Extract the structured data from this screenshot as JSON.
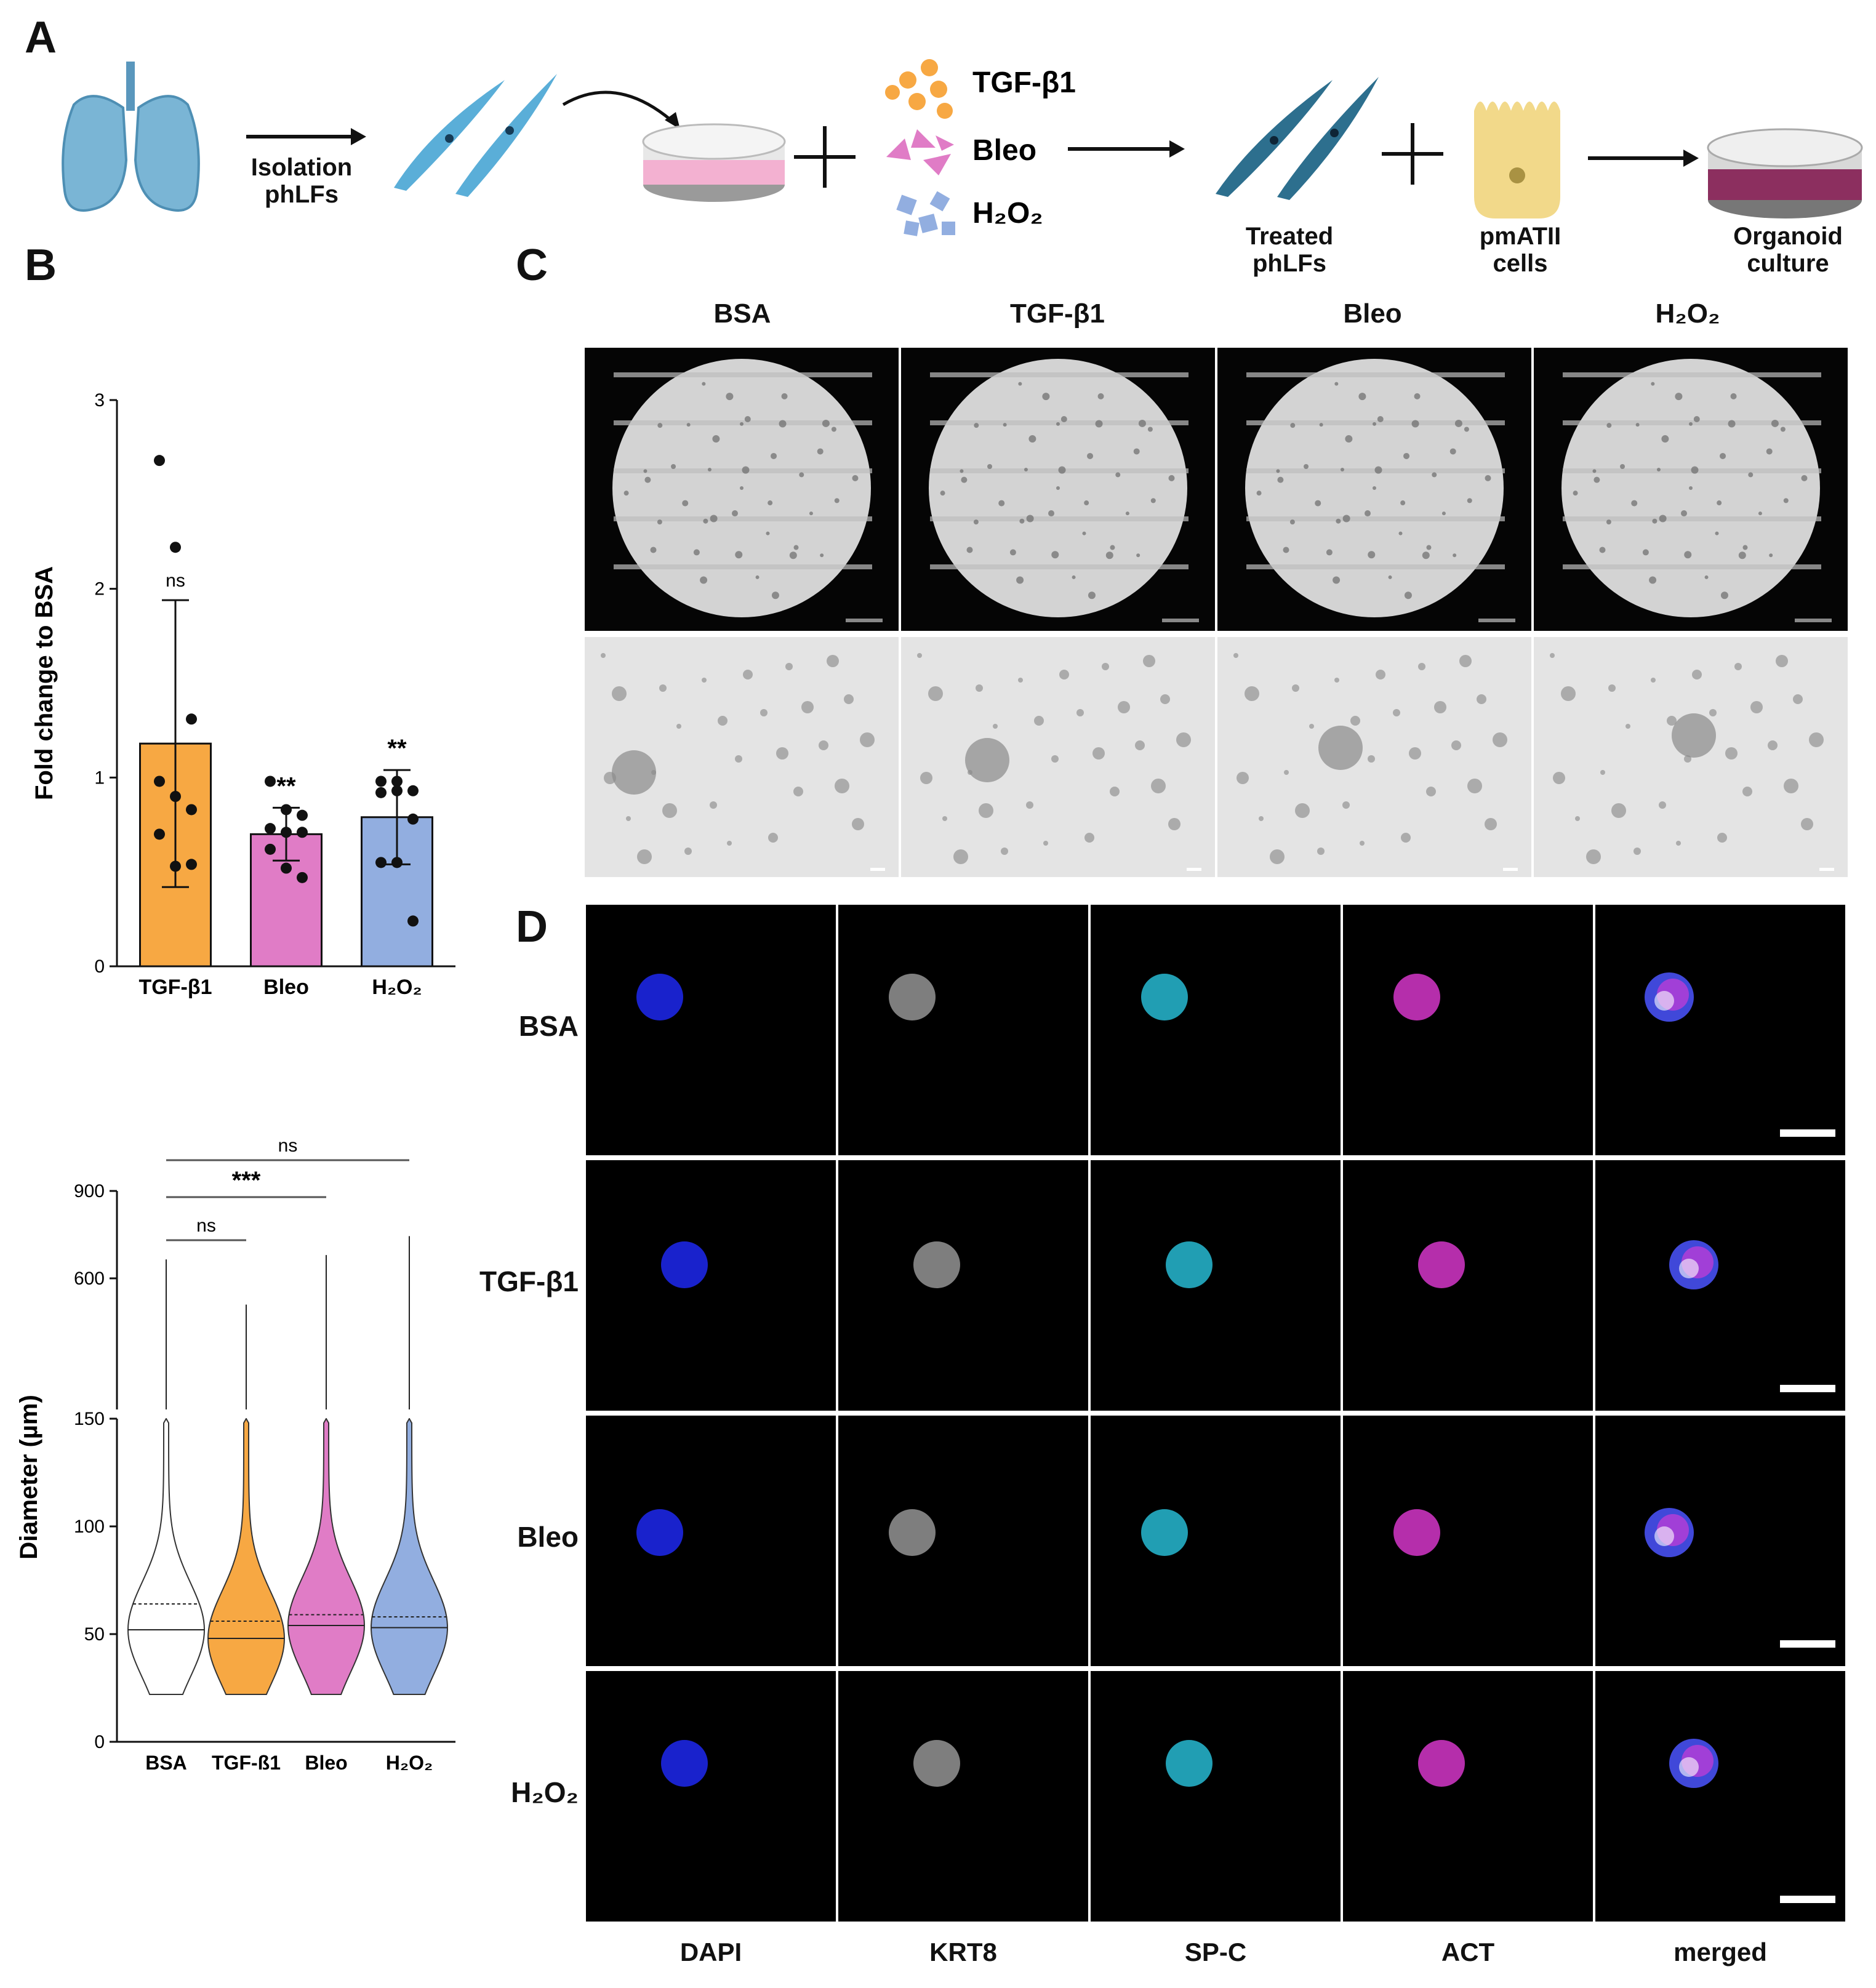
{
  "panels": {
    "a": "A",
    "b": "B",
    "c": "C",
    "d": "D"
  },
  "panelA": {
    "isolation_label": "Isolation\nphLFs",
    "treatments": [
      "TGF-β1",
      "Bleo",
      "H₂O₂"
    ],
    "treated_label": "Treated\nphLFs",
    "pmatii_label": "pmATII\ncells",
    "organoid_label": "Organoid\nculture"
  },
  "colors": {
    "tgf": "#f7a843",
    "bleo": "#e07cc6",
    "h2o2": "#92aee0",
    "bsa": "#ffffff",
    "lung": "#7ab5d5",
    "fibroblast": "#5aaed8",
    "treated_fibroblast": "#2d6f8e",
    "dish_pink": "#f3b1d1",
    "dish_organoid": "#8c2f5f",
    "cell_yellow": "#f2d98a"
  },
  "chart_data": [
    {
      "type": "bar",
      "categories": [
        "TGF-β1",
        "Bleo",
        "H₂O₂"
      ],
      "values": [
        1.18,
        0.7,
        0.79
      ],
      "errors": [
        0.76,
        0.14,
        0.25
      ],
      "ylabel": "Fold change to BSA",
      "ylim": [
        0,
        3
      ],
      "yticks": [
        "0",
        "1",
        "2",
        "3"
      ],
      "significance": [
        "ns",
        "**",
        "**"
      ],
      "points": [
        [
          2.68,
          2.22,
          1.31,
          0.98,
          0.9,
          0.83,
          0.7,
          0.53,
          0.54
        ],
        [
          0.98,
          0.83,
          0.8,
          0.73,
          0.71,
          0.71,
          0.62,
          0.52,
          0.47
        ],
        [
          0.98,
          0.98,
          0.93,
          0.92,
          0.93,
          0.78,
          0.55,
          0.55,
          0.24
        ]
      ]
    },
    {
      "type": "violin",
      "categories": [
        "BSA",
        "TGF-ß1",
        "Bleo",
        "H₂O₂"
      ],
      "ylabel": "Diameter (µm)",
      "yticks_lower": [
        "0",
        "50",
        "100",
        "150"
      ],
      "yticks_upper": [
        "600",
        "900"
      ],
      "median": [
        52,
        48,
        54,
        53
      ],
      "quartile_upper": [
        64,
        56,
        59,
        58
      ],
      "max": [
        665,
        510,
        680,
        745
      ],
      "significance": [
        {
          "pair": [
            "BSA",
            "TGF-ß1"
          ],
          "label": "ns"
        },
        {
          "pair": [
            "BSA",
            "Bleo"
          ],
          "label": "***"
        },
        {
          "pair": [
            "BSA",
            "H₂O₂"
          ],
          "label": "ns"
        }
      ]
    }
  ],
  "panelC": {
    "columns": [
      "BSA",
      "TGF-β1",
      "Bleo",
      "H₂O₂"
    ]
  },
  "panelD": {
    "rows": [
      "BSA",
      "TGF-β1",
      "Bleo",
      "H₂O₂"
    ],
    "columns": [
      "DAPI",
      "KRT8",
      "SP-C",
      "ACT",
      "merged"
    ]
  }
}
